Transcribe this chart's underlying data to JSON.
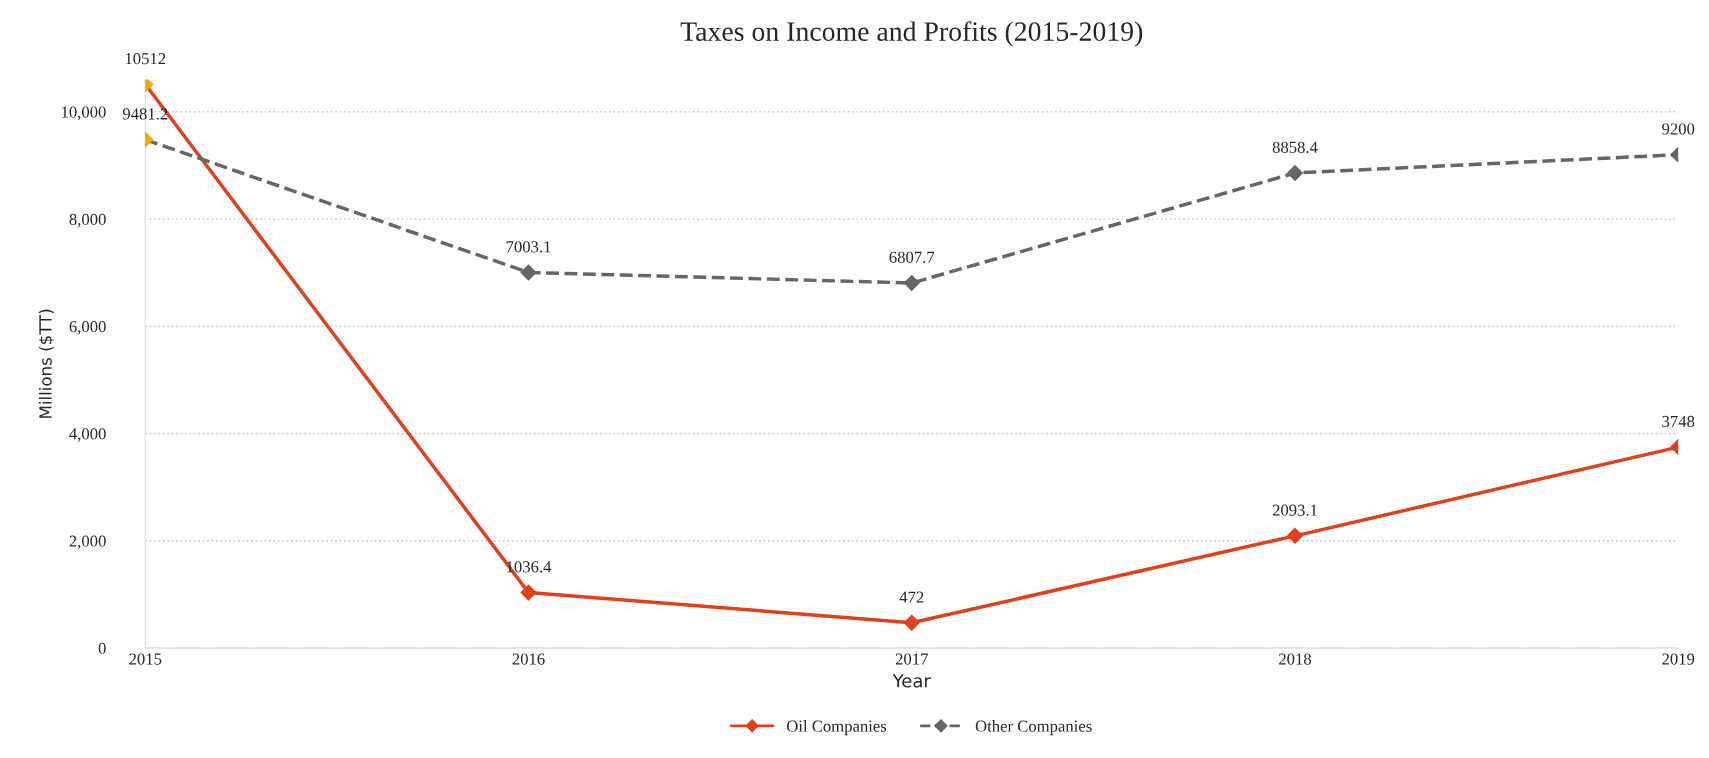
{
  "chart_data": {
    "type": "line",
    "title": "Taxes on Income and Profits (2015-2019)",
    "xlabel": "Year",
    "ylabel": "Millions ($TT)",
    "x": [
      2015,
      2016,
      2017,
      2018,
      2019
    ],
    "series": [
      {
        "name": "Oil Companies",
        "color": "#e0401a",
        "colors": [
          "#f5a800",
          "#e0401a",
          "#e0401a",
          "#e0401a",
          "#e0401a"
        ],
        "line_style": "solid",
        "values": [
          10512,
          1036.4,
          472,
          2093.1,
          3748
        ]
      },
      {
        "name": "Other Companies",
        "color": "#666666",
        "colors": [
          "#f5a800",
          "#666666",
          "#666666",
          "#666666",
          "#666666"
        ],
        "line_style": "dashed",
        "values": [
          9481.2,
          7003.1,
          6807.7,
          8858.4,
          9200
        ]
      }
    ],
    "xlim": [
      2015,
      2019
    ],
    "xticks": [
      2015,
      2016,
      2017,
      2018,
      2019
    ],
    "ylim": [
      0,
      10600
    ],
    "yticks": [
      {
        "value": 0,
        "label": "0"
      },
      {
        "value": 2000,
        "label": "2,000"
      },
      {
        "value": 4000,
        "label": "4,000"
      },
      {
        "value": 6000,
        "label": "6,000"
      },
      {
        "value": 8000,
        "label": "8,000"
      },
      {
        "value": 10000,
        "label": "10,000"
      }
    ],
    "grid": "y",
    "legend": "bottom",
    "marker": "diamond",
    "data_labels": true
  }
}
